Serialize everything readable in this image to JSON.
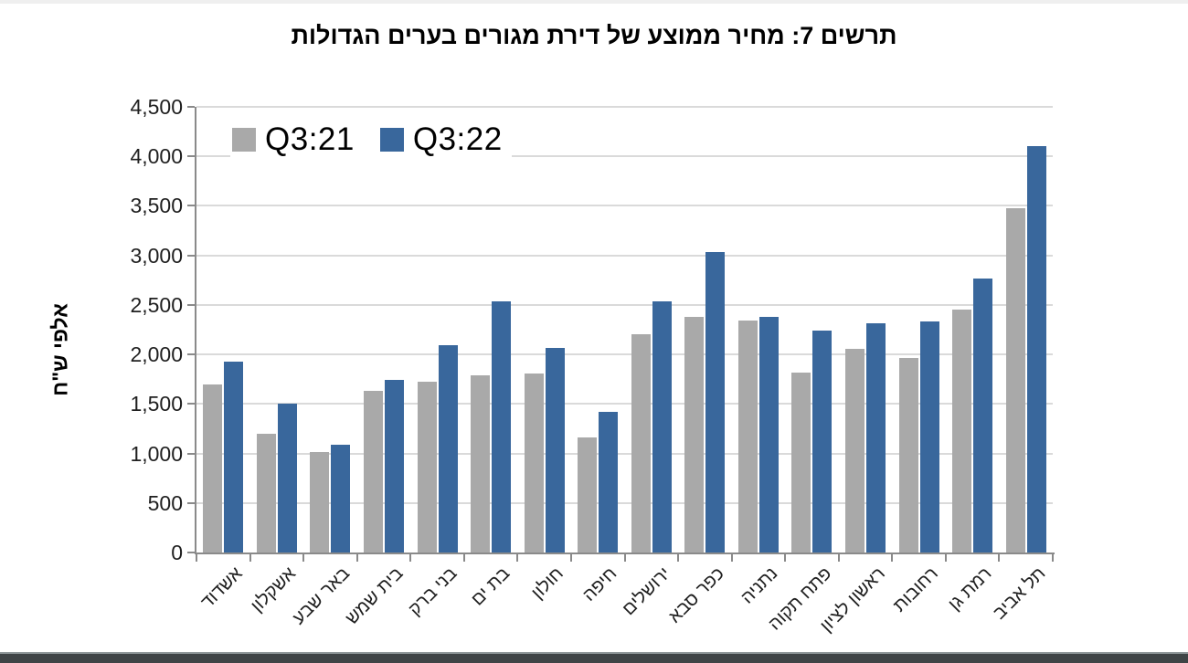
{
  "page": {
    "title": "תרשים 7: מחיר ממוצע של דירת מגורים בערים הגדולות"
  },
  "chart_data": {
    "type": "bar",
    "title": "תרשים 7: מחיר ממוצע של דירת מגורים בערים הגדולות",
    "ylabel": "אלפי ש\"ח",
    "xlabel": "",
    "categories": [
      "אשדוד",
      "אשקלון",
      "באר שבע",
      "בית שמש",
      "בני ברק",
      "בת ים",
      "חולון",
      "חיפה",
      "ירושלים",
      "כפר סבא",
      "נתניה",
      "פתח תקוה",
      "ראשון לציון",
      "רחובות",
      "רמת גן",
      "תל אביב"
    ],
    "series": [
      {
        "name": "Q3:21",
        "color": "#a9a9a9",
        "values": [
          1700,
          1200,
          1015,
          1630,
          1720,
          1790,
          1810,
          1160,
          2205,
          2375,
          2345,
          1815,
          2055,
          1960,
          2450,
          3480
        ]
      },
      {
        "name": "Q3:22",
        "color": "#39679c",
        "values": [
          1930,
          1505,
          1090,
          1745,
          2090,
          2540,
          2065,
          1420,
          2540,
          3030,
          2380,
          2240,
          2310,
          2330,
          2770,
          4100
        ]
      }
    ],
    "ylim": [
      0,
      4500
    ],
    "ytick_step": 500,
    "grid": true,
    "legend_position": "top-left"
  },
  "colors": {
    "bar_q3_21": "#a9a9a9",
    "bar_q3_22": "#39679c",
    "gridline": "#dadada",
    "axis": "#8a8a8a",
    "footer_strip": "#3f4446",
    "title_text": "#000000",
    "tick_text": "#1f1f1f"
  }
}
